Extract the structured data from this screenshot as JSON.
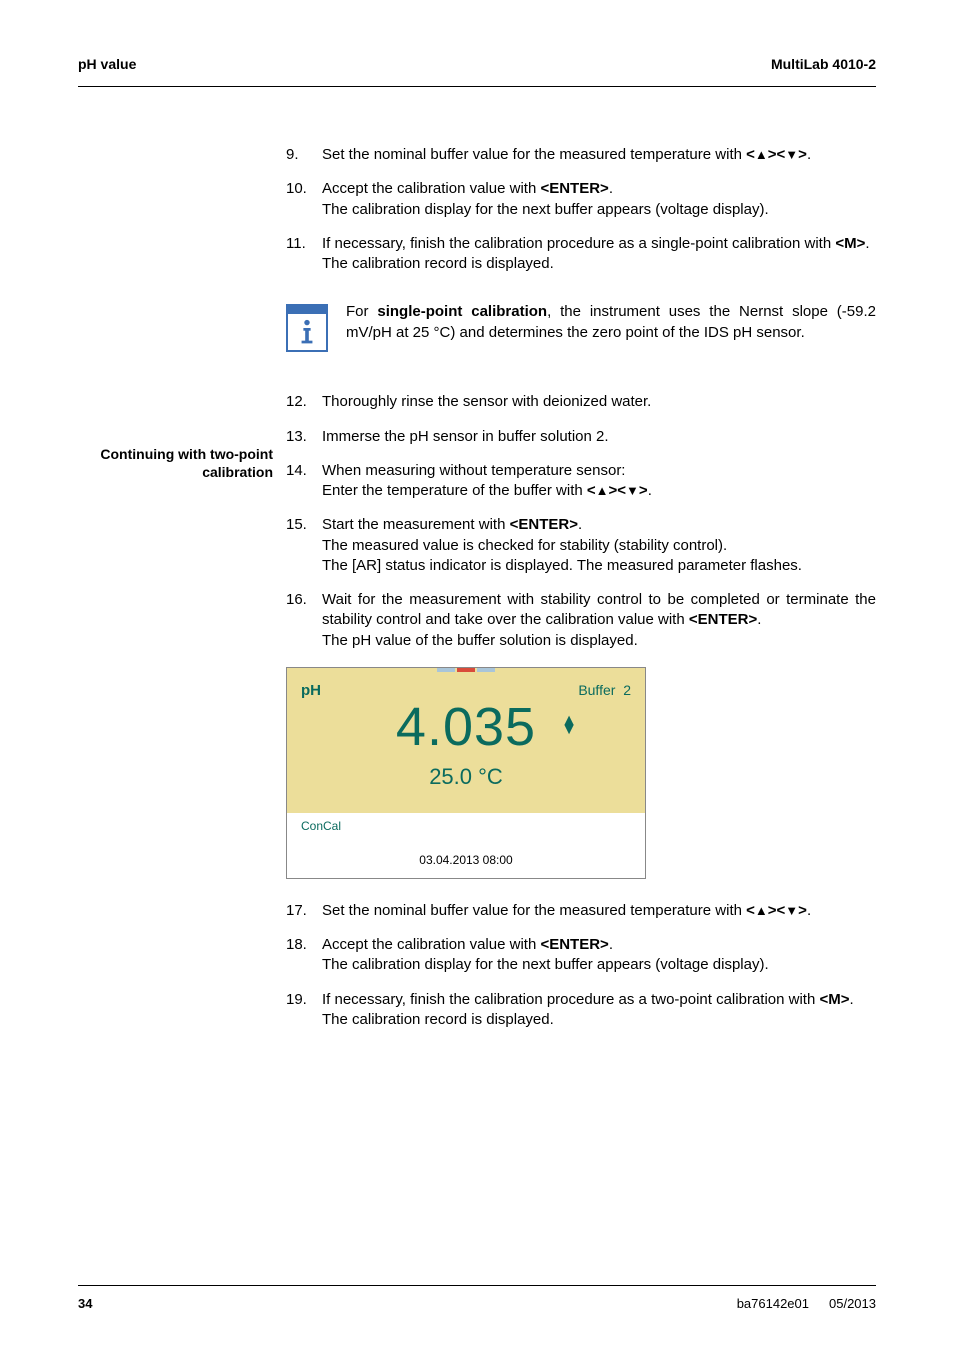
{
  "header": {
    "left": "pH value",
    "right": "MultiLab 4010-2"
  },
  "steps_a": [
    {
      "num": "9.",
      "text": "Set the nominal buffer value for the measured temperature with <▲><▼>."
    },
    {
      "num": "10.",
      "text": "Accept the calibration value with <b><ENTER></b>.<br>The calibration display for the next buffer appears (voltage display)."
    },
    {
      "num": "11.",
      "text": "If necessary, finish the calibration procedure as a single-point calibration with <b><M></b>.<br>The calibration record is displayed."
    }
  ],
  "info_text": "For <b>single-point calibration</b>, the instrument uses the Nernst slope (-59.2 mV/pH at 25 °C) and determines the zero point of the IDS pH sensor.",
  "sidebar": "Continuing with two-point calibration",
  "steps_b": [
    {
      "num": "12.",
      "text": "Thoroughly rinse the sensor with deionized water."
    },
    {
      "num": "13.",
      "text": "Immerse the pH sensor in buffer solution 2."
    },
    {
      "num": "14.",
      "text": "When measuring without temperature sensor:<br>Enter the temperature of the buffer with <▲><▼>."
    },
    {
      "num": "15.",
      "text": "Start the measurement with <b><ENTER></b>.<br>The measured value is checked for stability (stability control).<br>The [AR] status indicator is displayed. The measured parameter flashes."
    },
    {
      "num": "16.",
      "text": "Wait for the measurement with stability control to be completed or terminate the stability control and take over the calibration value with <b><ENTER></b>.<br>The pH value of the buffer solution is displayed."
    }
  ],
  "display": {
    "ph_label": "pH",
    "buffer_label": "Buffer",
    "buffer_num": "2",
    "reading": "4.035",
    "temp": "25.0 °C",
    "concal": "ConCal",
    "timestamp": "03.04.2013 08:00",
    "bg_top": "#ecde9a",
    "bg_bottom": "#ffffff",
    "fg": "#0b6b5e",
    "tab_colors": [
      "#a9c5d9",
      "#d94b3a",
      "#a9c5d9"
    ]
  },
  "steps_c": [
    {
      "num": "17.",
      "text": "Set the nominal buffer value for the measured temperature with <▲><▼>."
    },
    {
      "num": "18.",
      "text": "Accept the calibration value with <b><ENTER></b>.<br>The calibration display for the next buffer appears (voltage display)."
    },
    {
      "num": "19.",
      "text": "If necessary, finish the calibration procedure as a two-point calibration with <b><M></b>.<br>The calibration record is displayed."
    }
  ],
  "footer": {
    "page": "34",
    "doc": "ba76142e01",
    "date": "05/2013"
  }
}
